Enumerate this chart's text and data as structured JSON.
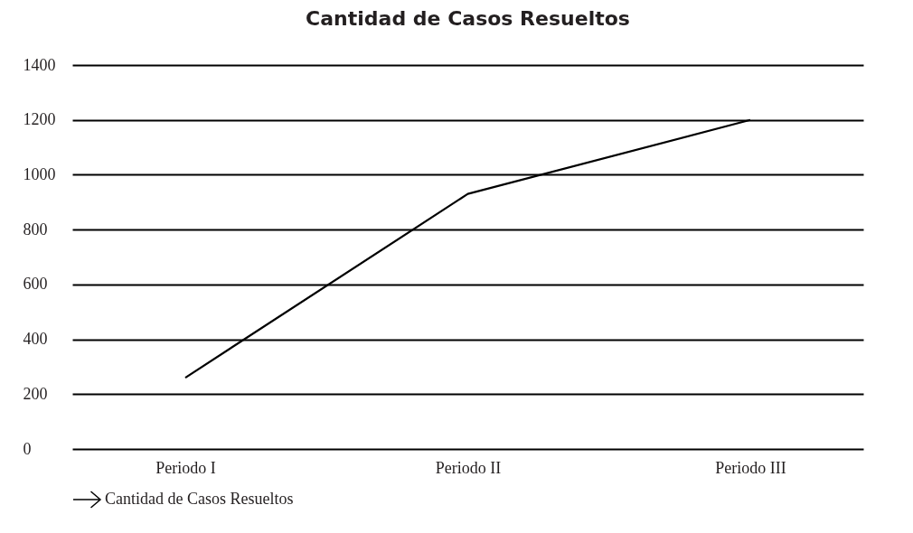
{
  "chart_data": {
    "type": "line",
    "title": "Cantidad de Casos Resueltos",
    "categories": [
      "Periodo I",
      "Periodo II",
      "Periodo III"
    ],
    "series": [
      {
        "name": "Cantidad de Casos Resueltos",
        "color": "#000000",
        "values": [
          260,
          930,
          1200
        ]
      }
    ],
    "ylim": [
      0,
      1400
    ],
    "yticks": [
      0,
      200,
      400,
      600,
      800,
      1000,
      1200,
      1400
    ],
    "grid": "y",
    "legend": "bottom",
    "marker": "none",
    "line_style": "solid"
  }
}
